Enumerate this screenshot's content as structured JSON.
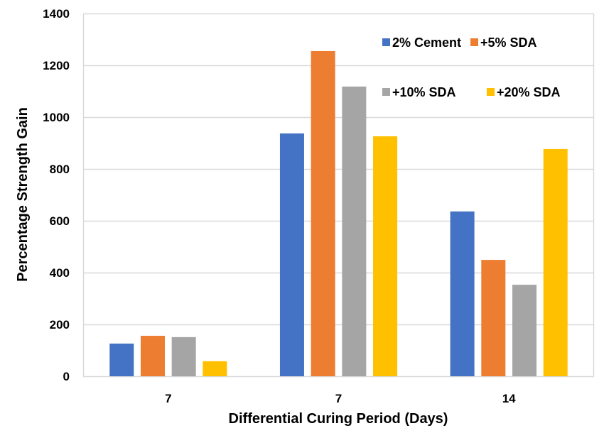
{
  "chart_data": {
    "type": "bar",
    "title": "",
    "xlabel": "Differential Curing Period (Days)",
    "ylabel": "Percentage Strength Gain",
    "categories": [
      "7",
      "7",
      "14"
    ],
    "ylim": [
      0,
      1400
    ],
    "yticks": [
      0,
      200,
      400,
      600,
      800,
      1000,
      1200,
      1400
    ],
    "grid": true,
    "legend_position": "top-right",
    "series": [
      {
        "name": "2% Cement",
        "color": "#4472C4",
        "values": [
          126,
          937,
          636
        ]
      },
      {
        "name": "+5% SDA",
        "color": "#ED7D31",
        "values": [
          156,
          1255,
          449
        ]
      },
      {
        "name": "+10% SDA",
        "color": "#A5A5A5",
        "values": [
          151,
          1118,
          353
        ]
      },
      {
        "name": "+20% SDA",
        "color": "#FFC000",
        "values": [
          58,
          926,
          877
        ]
      }
    ]
  }
}
